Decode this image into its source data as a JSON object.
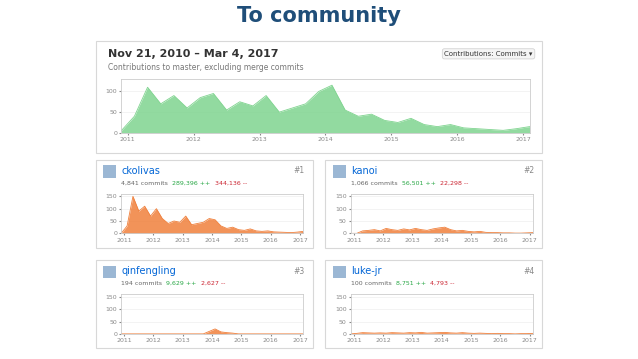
{
  "title": "To community",
  "chart_data": [
    {
      "type": "area",
      "title": "Nov 21, 2010 – Mar 4, 2017",
      "subtitle": "Contributions to master, excluding merge commits",
      "annotations": [
        "Contributions: Commits ▾"
      ],
      "color": "#7fd48f",
      "x": [
        2010.9,
        2011.1,
        2011.3,
        2011.5,
        2011.7,
        2011.9,
        2012.1,
        2012.3,
        2012.5,
        2012.7,
        2012.9,
        2013.1,
        2013.3,
        2013.5,
        2013.7,
        2013.9,
        2014.1,
        2014.3,
        2014.5,
        2014.7,
        2014.9,
        2015.1,
        2015.3,
        2015.5,
        2015.7,
        2015.9,
        2016.1,
        2016.3,
        2016.5,
        2016.7,
        2016.9,
        2017.1
      ],
      "values": [
        5,
        40,
        110,
        70,
        90,
        60,
        85,
        95,
        55,
        75,
        65,
        90,
        50,
        60,
        70,
        100,
        115,
        55,
        40,
        45,
        30,
        25,
        35,
        20,
        15,
        20,
        12,
        10,
        8,
        6,
        10,
        15
      ],
      "xlim": [
        2010.9,
        2017.1
      ],
      "xticks": [
        2011,
        2012,
        2013,
        2014,
        2015,
        2016,
        2017
      ],
      "ylim": [
        0,
        130
      ],
      "yticks": [
        0,
        50,
        100
      ]
    },
    {
      "type": "area",
      "title": "ckolivas",
      "annotations": [
        "#1",
        "4,841 commits",
        "289,396 ++",
        "344,136 --"
      ],
      "color": "#f0803c",
      "x": [
        2010.9,
        2011.1,
        2011.3,
        2011.5,
        2011.7,
        2011.9,
        2012.1,
        2012.3,
        2012.5,
        2012.7,
        2012.9,
        2013.1,
        2013.3,
        2013.5,
        2013.7,
        2013.9,
        2014.1,
        2014.3,
        2014.5,
        2014.7,
        2014.9,
        2015.1,
        2015.3,
        2015.5,
        2015.7,
        2015.9,
        2016.1,
        2016.3,
        2016.5,
        2016.7,
        2016.9,
        2017.1
      ],
      "values": [
        0,
        30,
        150,
        90,
        110,
        70,
        100,
        60,
        40,
        50,
        45,
        70,
        35,
        40,
        45,
        60,
        55,
        30,
        20,
        25,
        15,
        12,
        18,
        10,
        8,
        10,
        6,
        5,
        4,
        3,
        5,
        8
      ],
      "xlim": [
        2010.9,
        2017.1
      ],
      "xticks": [
        2011,
        2012,
        2013,
        2014,
        2015,
        2016,
        2017
      ],
      "ylim": [
        0,
        160
      ],
      "yticks": [
        0,
        50,
        100,
        150
      ]
    },
    {
      "type": "area",
      "title": "kanoi",
      "annotations": [
        "#2",
        "1,066 commits",
        "56,501 ++",
        "22,298 --"
      ],
      "color": "#f0803c",
      "x": [
        2010.9,
        2011.1,
        2011.3,
        2011.5,
        2011.7,
        2011.9,
        2012.1,
        2012.3,
        2012.5,
        2012.7,
        2012.9,
        2013.1,
        2013.3,
        2013.5,
        2013.7,
        2013.9,
        2014.1,
        2014.3,
        2014.5,
        2014.7,
        2014.9,
        2015.1,
        2015.3,
        2015.5,
        2015.7,
        2015.9,
        2016.1,
        2016.3,
        2016.5,
        2016.7,
        2016.9,
        2017.1
      ],
      "values": [
        0,
        0,
        10,
        12,
        15,
        10,
        20,
        15,
        12,
        18,
        14,
        20,
        15,
        12,
        18,
        22,
        25,
        15,
        10,
        12,
        8,
        6,
        8,
        4,
        3,
        3,
        2,
        2,
        1,
        1,
        2,
        3
      ],
      "xlim": [
        2010.9,
        2017.1
      ],
      "xticks": [
        2011,
        2012,
        2013,
        2014,
        2015,
        2016,
        2017
      ],
      "ylim": [
        0,
        160
      ],
      "yticks": [
        0,
        50,
        100,
        150
      ]
    },
    {
      "type": "area",
      "title": "qinfengling",
      "annotations": [
        "#3",
        "194 commits",
        "9,629 ++",
        "2,627 --"
      ],
      "color": "#f0803c",
      "x": [
        2010.9,
        2011.1,
        2011.3,
        2011.5,
        2011.7,
        2011.9,
        2012.1,
        2012.3,
        2012.5,
        2012.7,
        2012.9,
        2013.1,
        2013.3,
        2013.5,
        2013.7,
        2013.9,
        2014.1,
        2014.3,
        2014.5,
        2014.7,
        2014.9,
        2015.1,
        2015.3,
        2015.5,
        2015.7,
        2015.9,
        2016.1,
        2016.3,
        2016.5,
        2016.7,
        2016.9,
        2017.1
      ],
      "values": [
        0,
        0,
        0,
        0,
        0,
        0,
        0,
        0,
        0,
        0,
        0,
        0,
        0,
        0,
        0,
        10,
        20,
        8,
        5,
        3,
        0,
        0,
        0,
        0,
        0,
        0,
        0,
        0,
        0,
        0,
        0,
        0
      ],
      "xlim": [
        2010.9,
        2017.1
      ],
      "xticks": [
        2011,
        2012,
        2013,
        2014,
        2015,
        2016,
        2017
      ],
      "ylim": [
        0,
        160
      ],
      "yticks": [
        0,
        50,
        100,
        150
      ]
    },
    {
      "type": "area",
      "title": "luke-jr",
      "annotations": [
        "#4",
        "100 commits",
        "8,751 ++",
        "4,793 --"
      ],
      "color": "#f0803c",
      "x": [
        2010.9,
        2011.1,
        2011.3,
        2011.5,
        2011.7,
        2011.9,
        2012.1,
        2012.3,
        2012.5,
        2012.7,
        2012.9,
        2013.1,
        2013.3,
        2013.5,
        2013.7,
        2013.9,
        2014.1,
        2014.3,
        2014.5,
        2014.7,
        2014.9,
        2015.1,
        2015.3,
        2015.5,
        2015.7,
        2015.9,
        2016.1,
        2016.3,
        2016.5,
        2016.7,
        2016.9,
        2017.1
      ],
      "values": [
        0,
        2,
        5,
        4,
        3,
        4,
        3,
        5,
        4,
        3,
        5,
        4,
        6,
        3,
        4,
        5,
        6,
        4,
        3,
        5,
        3,
        2,
        3,
        2,
        1,
        2,
        1,
        1,
        0,
        1,
        1,
        2
      ],
      "xlim": [
        2010.9,
        2017.1
      ],
      "xticks": [
        2011,
        2012,
        2013,
        2014,
        2015,
        2016,
        2017
      ],
      "ylim": [
        0,
        160
      ],
      "yticks": [
        0,
        50,
        100,
        150
      ]
    }
  ]
}
